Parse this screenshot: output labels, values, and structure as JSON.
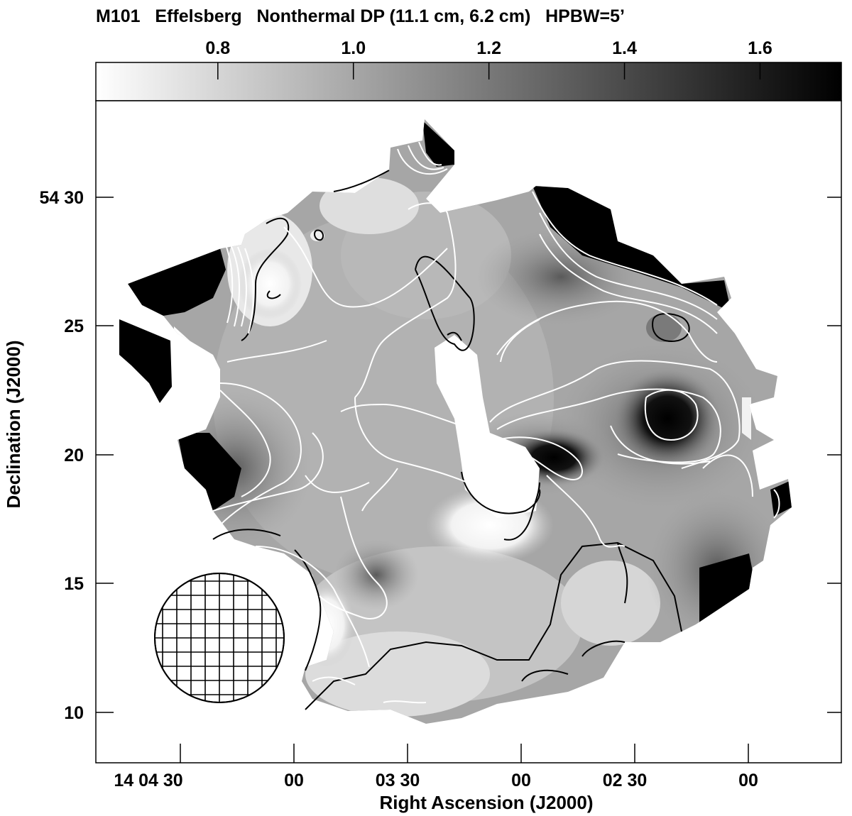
{
  "chart_data": {
    "type": "heatmap",
    "title": "M101   Effelsberg   Nonthermal DP (11.1 cm, 6.2 cm)   HPBW=5’",
    "xlabel": "Right Ascension (J2000)",
    "ylabel": "Declination (J2000)",
    "x_ticks": [
      "14 04 30",
      "00",
      "03 30",
      "00",
      "02 30",
      "00"
    ],
    "y_ticks": [
      "54 30",
      "25",
      "20",
      "15",
      "10"
    ],
    "colorbar": {
      "ticks": [
        "0.8",
        "1.0",
        "1.2",
        "1.4",
        "1.6"
      ],
      "range": [
        0.62,
        1.72
      ],
      "colormap": "white-to-black"
    },
    "contour_colors": {
      "low": "#000000",
      "high": "#ffffff"
    },
    "beam": "HPBW=5’"
  }
}
